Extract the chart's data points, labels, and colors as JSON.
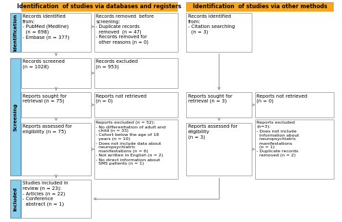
{
  "header_left": "Identification  of studies via databases and registers",
  "header_right": "Identification  of studies via other methods",
  "header_bg": "#F5A623",
  "box_border": "#AAAAAA",
  "side_bg": "#87CEEB",
  "side_border": "#6699BB",
  "arrow_color": "#888888",
  "boxes": {
    "id_left": "Records identified\nfrom:\n- PubMed (Medline)\n  (n = 698)\n- Embase (n = 377)",
    "id_remove": "Records removed  before\nscreening:\n- Duplicate records\n  removed  (n = 47)\n- Records removed for\n  other reasons (n = 0)",
    "id_right": "Records identified\nfrom:\n- Citation searching\n  (n = 3)",
    "screen_left": "Records screened\n(n = 1028)",
    "screen_excl": "Records excluded\n(n = 953)",
    "seek_left": "Reports sought for\nretrieval (n = 75)",
    "seek_not_left": "Reports not retrieved\n(n = 0)",
    "seek_right": "Reports sought for\nretrieval (n = 3)",
    "seek_not_right": "Reports not retrieved\n(n = 0)",
    "elig_left": "Reports assessed for\neligibility (n = 75)",
    "elig_excl": "Reports excluded (n = 52):\n- No differentiation of adult and\n  child (n = 33)\n- Cohort below the age of 18\n  years (n = 10)\n- Does not include data about\n  neuropsychiatric\n  manifestations (n = 6)\n- Not written in English (n = 2)\n- No direct information about\n  SMS patients (n = 1)",
    "elig_right": "Reports assessed for\neligibility\n(n = 3)",
    "elig_excl_right": "Reports excluded\n(n=3):\n- Does not include\n  information about\n  neuropsychiatric\n  manifestations\n  (n = 1)\n- Duplicate records\n  removed (n = 2)",
    "included": "Studies included in\nreview (n = 23):\n- Articles (n = 22)\n- Conference\n  abstract (n = 1)"
  }
}
